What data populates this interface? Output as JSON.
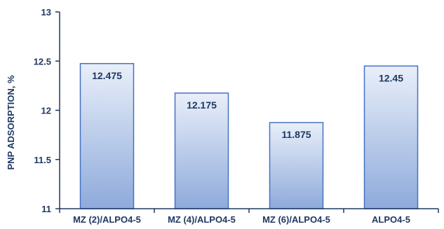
{
  "chart_data": {
    "type": "bar",
    "title": "",
    "xlabel": "",
    "ylabel": "PNP ADSORPTION, %",
    "categories": [
      "MZ (2)/ALPO4-5",
      "MZ (4)/ALPO4-5",
      "MZ (6)/ALPO4-5",
      "ALPO4-5"
    ],
    "values": [
      12.475,
      12.175,
      11.875,
      12.45
    ],
    "data_labels": [
      "12.475",
      "12.175",
      "11.875",
      "12.45"
    ],
    "ylim": [
      11,
      13
    ],
    "yticks": [
      11,
      11.5,
      12,
      12.5,
      13
    ],
    "ytick_labels": [
      "11",
      "11.5",
      "12",
      "12.5",
      "13"
    ],
    "grid": false,
    "legend": "none",
    "colors": {
      "bar_top": "#e9eff9",
      "bar_bottom": "#8eaadb",
      "bar_border": "#4472c4",
      "axis": "#1f3864",
      "text": "#1f3864"
    }
  }
}
